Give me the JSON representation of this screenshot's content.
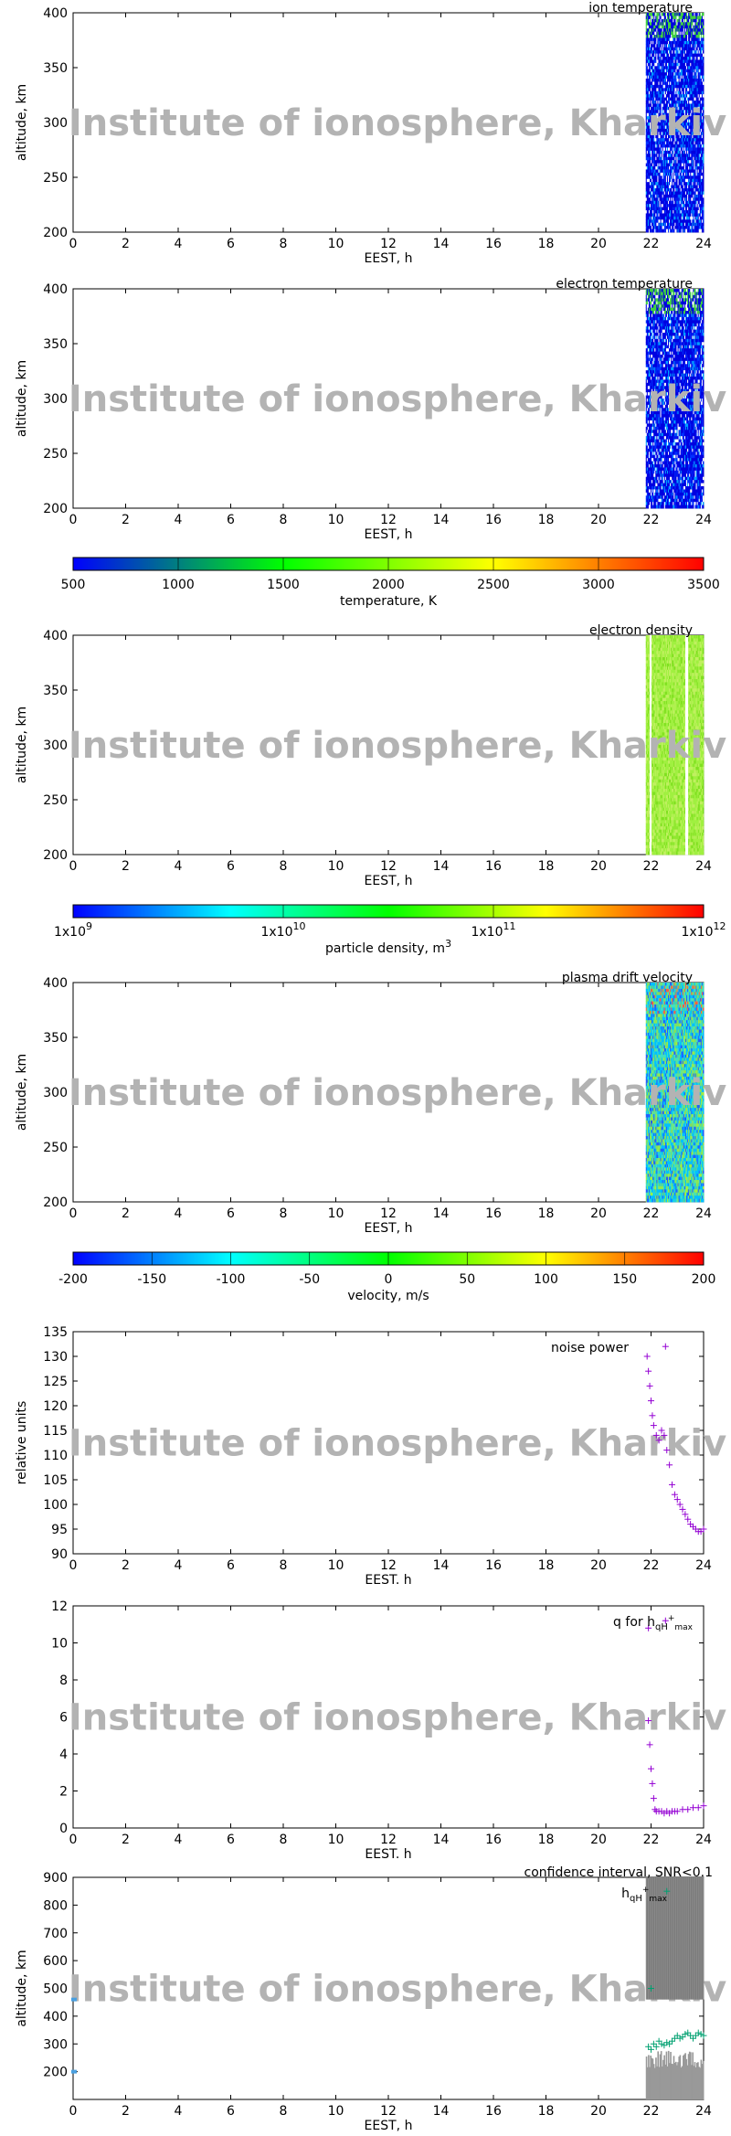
{
  "watermark": "Institute of ionosphere, Kharkiv",
  "chart_data": [
    {
      "type": "heatmap",
      "title": "ion temperature",
      "xlabel": "EEST, h",
      "ylabel": "altitude, km",
      "xlim": [
        0,
        24
      ],
      "ylim": [
        200,
        400
      ],
      "xticks": [
        "0",
        "2",
        "4",
        "6",
        "8",
        "10",
        "12",
        "14",
        "16",
        "18",
        "20",
        "22",
        "24"
      ],
      "yticks": [
        "200",
        "250",
        "300",
        "350",
        "400"
      ],
      "data_time_range": [
        21.8,
        24
      ],
      "colorbar": "temperature"
    },
    {
      "type": "heatmap",
      "title": "electron temperature",
      "xlabel": "EEST, h",
      "ylabel": "altitude, km",
      "xlim": [
        0,
        24
      ],
      "ylim": [
        200,
        400
      ],
      "xticks": [
        "0",
        "2",
        "4",
        "6",
        "8",
        "10",
        "12",
        "14",
        "16",
        "18",
        "20",
        "22",
        "24"
      ],
      "yticks": [
        "200",
        "250",
        "300",
        "350",
        "400"
      ],
      "data_time_range": [
        21.8,
        24
      ],
      "colorbar": "temperature"
    },
    {
      "type": "colorbar",
      "label": "temperature, K",
      "range": [
        500,
        3500
      ],
      "ticks": [
        "500",
        "1000",
        "1500",
        "2000",
        "2500",
        "3000",
        "3500"
      ],
      "colors": [
        "#0000ff",
        "#00ff00",
        "#ffff00",
        "#ff0000"
      ]
    },
    {
      "type": "heatmap",
      "title": "electron density",
      "xlabel": "EEST, h",
      "ylabel": "altitude, km",
      "xlim": [
        0,
        24
      ],
      "ylim": [
        200,
        400
      ],
      "xticks": [
        "0",
        "2",
        "4",
        "6",
        "8",
        "10",
        "12",
        "14",
        "16",
        "18",
        "20",
        "22",
        "24"
      ],
      "yticks": [
        "200",
        "250",
        "300",
        "350",
        "400"
      ],
      "data_time_range": [
        21.8,
        24
      ],
      "colorbar": "density"
    },
    {
      "type": "colorbar",
      "label": "particle density, m",
      "label_sup": "3",
      "scale": "log",
      "range": [
        1000000000.0,
        1000000000000.0
      ],
      "ticks": [
        {
          "base": "1x10",
          "exp": "9"
        },
        {
          "base": "1x10",
          "exp": "10"
        },
        {
          "base": "1x10",
          "exp": "11"
        },
        {
          "base": "1x10",
          "exp": "12"
        }
      ],
      "colors": [
        "#0000ff",
        "#00ffff",
        "#00ff00",
        "#ffff00",
        "#ff0000"
      ]
    },
    {
      "type": "heatmap",
      "title": "plasma drift velocity",
      "xlabel": "EEST, h",
      "ylabel": "altitude, km",
      "xlim": [
        0,
        24
      ],
      "ylim": [
        200,
        400
      ],
      "xticks": [
        "0",
        "2",
        "4",
        "6",
        "8",
        "10",
        "12",
        "14",
        "16",
        "18",
        "20",
        "22",
        "24"
      ],
      "yticks": [
        "200",
        "250",
        "300",
        "350",
        "400"
      ],
      "data_time_range": [
        21.8,
        24
      ],
      "colorbar": "velocity"
    },
    {
      "type": "colorbar",
      "label": "velocity, m/s",
      "range": [
        -200,
        200
      ],
      "ticks": [
        "-200",
        "-150",
        "-100",
        "-50",
        "0",
        "50",
        "100",
        "150",
        "200"
      ],
      "colors": [
        "#0000ff",
        "#00ffff",
        "#00ff00",
        "#ffff00",
        "#ff0000"
      ]
    },
    {
      "type": "scatter",
      "title": "noise power",
      "xlabel": "EEST. h",
      "ylabel": "relative units",
      "xlim": [
        0,
        24
      ],
      "ylim": [
        90,
        135
      ],
      "xticks": [
        "0",
        "2",
        "4",
        "6",
        "8",
        "10",
        "12",
        "14",
        "16",
        "18",
        "20",
        "22",
        "24"
      ],
      "yticks": [
        "90",
        "95",
        "100",
        "105",
        "110",
        "115",
        "120",
        "125",
        "130",
        "135"
      ],
      "marker_color": "#9400d3",
      "x": [
        21.85,
        21.9,
        21.95,
        22.0,
        22.05,
        22.1,
        22.2,
        22.3,
        22.4,
        22.5,
        22.6,
        22.7,
        22.8,
        22.9,
        23.0,
        23.1,
        23.2,
        23.3,
        23.4,
        23.5,
        23.6,
        23.7,
        23.8,
        23.9,
        24.0,
        22.55
      ],
      "y": [
        130,
        127,
        124,
        121,
        118,
        116,
        114,
        113,
        115,
        114,
        111,
        108,
        104,
        102,
        101,
        100,
        99,
        98,
        97,
        96,
        95.5,
        95,
        94.5,
        94.5,
        95,
        132
      ]
    },
    {
      "type": "scatter",
      "title": "q for h",
      "title_sub": "qH",
      "title_sup": "+",
      "title_sub2": "max",
      "xlabel": "EEST. h",
      "ylabel": "",
      "xlim": [
        0,
        24
      ],
      "ylim": [
        0,
        12
      ],
      "xticks": [
        "0",
        "2",
        "4",
        "6",
        "8",
        "10",
        "12",
        "14",
        "16",
        "18",
        "20",
        "22",
        "24"
      ],
      "yticks": [
        "0",
        "2",
        "4",
        "6",
        "8",
        "10",
        "12"
      ],
      "marker_color": "#9400d3",
      "x": [
        21.9,
        21.95,
        22.0,
        22.05,
        22.1,
        22.15,
        22.2,
        22.3,
        22.4,
        22.5,
        22.6,
        22.7,
        22.8,
        22.9,
        23.0,
        23.2,
        23.4,
        23.6,
        23.8,
        24.0,
        21.9,
        22.55
      ],
      "y": [
        5.8,
        4.5,
        3.2,
        2.4,
        1.6,
        1.0,
        0.9,
        0.9,
        0.9,
        0.8,
        0.9,
        0.8,
        0.9,
        0.9,
        0.9,
        1.0,
        1.0,
        1.1,
        1.1,
        1.2,
        10.8,
        11.2
      ]
    },
    {
      "type": "scatter",
      "title": "confidence interval, SNR<0.1",
      "legend_label": "h",
      "legend_sub": "qH",
      "legend_sup": "+",
      "legend_sub2": "max",
      "xlabel": "EEST, h",
      "ylabel": "altitude, km",
      "xlim": [
        0,
        24
      ],
      "ylim": [
        100,
        900
      ],
      "xticks": [
        "0",
        "2",
        "4",
        "6",
        "8",
        "10",
        "12",
        "14",
        "16",
        "18",
        "20",
        "22",
        "24"
      ],
      "yticks": [
        "200",
        "300",
        "400",
        "500",
        "600",
        "700",
        "800",
        "900"
      ],
      "marker_color": "#00a070",
      "band_color": "#808080",
      "x": [
        21.9,
        22.0,
        22.1,
        22.2,
        22.3,
        22.4,
        22.5,
        22.6,
        22.7,
        22.8,
        22.9,
        23.0,
        23.1,
        23.2,
        23.3,
        23.4,
        23.5,
        23.6,
        23.7,
        23.8,
        23.9,
        24.0,
        22.0,
        22.6
      ],
      "y": [
        290,
        280,
        300,
        290,
        310,
        300,
        295,
        305,
        300,
        310,
        320,
        330,
        320,
        325,
        335,
        340,
        330,
        320,
        330,
        340,
        335,
        330,
        500,
        850
      ]
    }
  ]
}
